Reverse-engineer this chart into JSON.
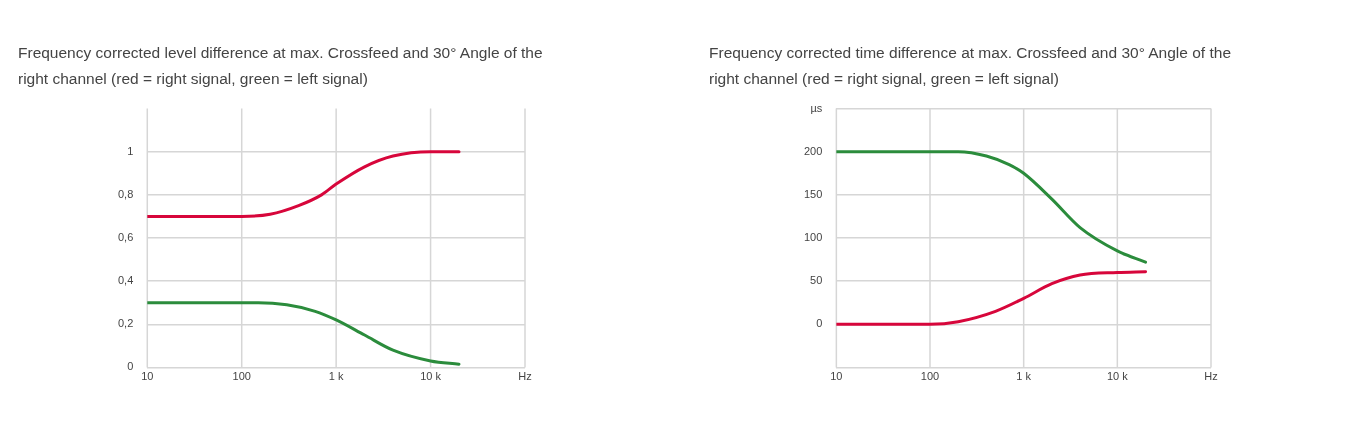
{
  "chart_data": [
    {
      "type": "line",
      "title": "Frequency corrected level difference at max. Crossfeed and 30° Angle of the right channel (red = right signal, green = left signal)",
      "log": "x",
      "grid": true,
      "legend": false,
      "marker": "none",
      "line_style": "solid",
      "xlim": [
        10,
        100000
      ],
      "xticks": [
        {
          "value": 10,
          "label": "10"
        },
        {
          "value": 100,
          "label": "100"
        },
        {
          "value": 1000,
          "label": "1 k"
        },
        {
          "value": 10000,
          "label": "10 k"
        },
        {
          "value": 100000,
          "label": "Hz"
        }
      ],
      "ylim": [
        0,
        1.2
      ],
      "yticks": [
        0,
        {
          "value": 0.2,
          "label": "0,2"
        },
        {
          "value": 0.4,
          "label": "0,4"
        },
        {
          "value": 0.6,
          "label": "0,6"
        },
        {
          "value": 0.8,
          "label": "0,8"
        },
        1
      ],
      "series": [
        {
          "color": "#d7063b",
          "x": [
            10,
            100,
            200,
            400,
            700,
            1000,
            2000,
            4000,
            10000,
            20000
          ],
          "values": [
            0.7,
            0.7,
            0.71,
            0.75,
            0.8,
            0.85,
            0.93,
            0.98,
            1.0,
            1.0
          ]
        },
        {
          "color": "#2b8c3c",
          "x": [
            10,
            150,
            300,
            600,
            1000,
            2000,
            4000,
            10000,
            20000
          ],
          "values": [
            0.3,
            0.3,
            0.29,
            0.26,
            0.22,
            0.15,
            0.08,
            0.03,
            0.015
          ]
        }
      ]
    },
    {
      "type": "line",
      "title": "Frequency corrected time difference at max. Crossfeed and 30° Angle of the right channel (red = right signal, green = left signal)",
      "log": "x",
      "grid": true,
      "legend": false,
      "marker": "none",
      "line_style": "solid",
      "xlim": [
        10,
        100000
      ],
      "xticks": [
        {
          "value": 10,
          "label": "10"
        },
        {
          "value": 100,
          "label": "100"
        },
        {
          "value": 1000,
          "label": "1 k"
        },
        {
          "value": 10000,
          "label": "10 k"
        },
        {
          "value": 100000,
          "label": "Hz"
        }
      ],
      "ylim": [
        -50,
        250
      ],
      "yticks": [
        {
          "value": -50,
          "label": null
        },
        0,
        50,
        100,
        150,
        200,
        {
          "value": 250,
          "label": "µs"
        }
      ],
      "series": [
        {
          "color": "#2b8c3c",
          "x": [
            10,
            200,
            400,
            700,
            1000,
            2000,
            4000,
            10000,
            20000
          ],
          "values": [
            200,
            200,
            195,
            185,
            175,
            145,
            112,
            85,
            72
          ]
        },
        {
          "color": "#d7063b",
          "x": [
            10,
            100,
            200,
            500,
            1000,
            2000,
            4000,
            10000,
            20000
          ],
          "values": [
            0,
            0,
            3,
            15,
            30,
            47,
            57,
            60,
            61
          ]
        }
      ]
    }
  ]
}
